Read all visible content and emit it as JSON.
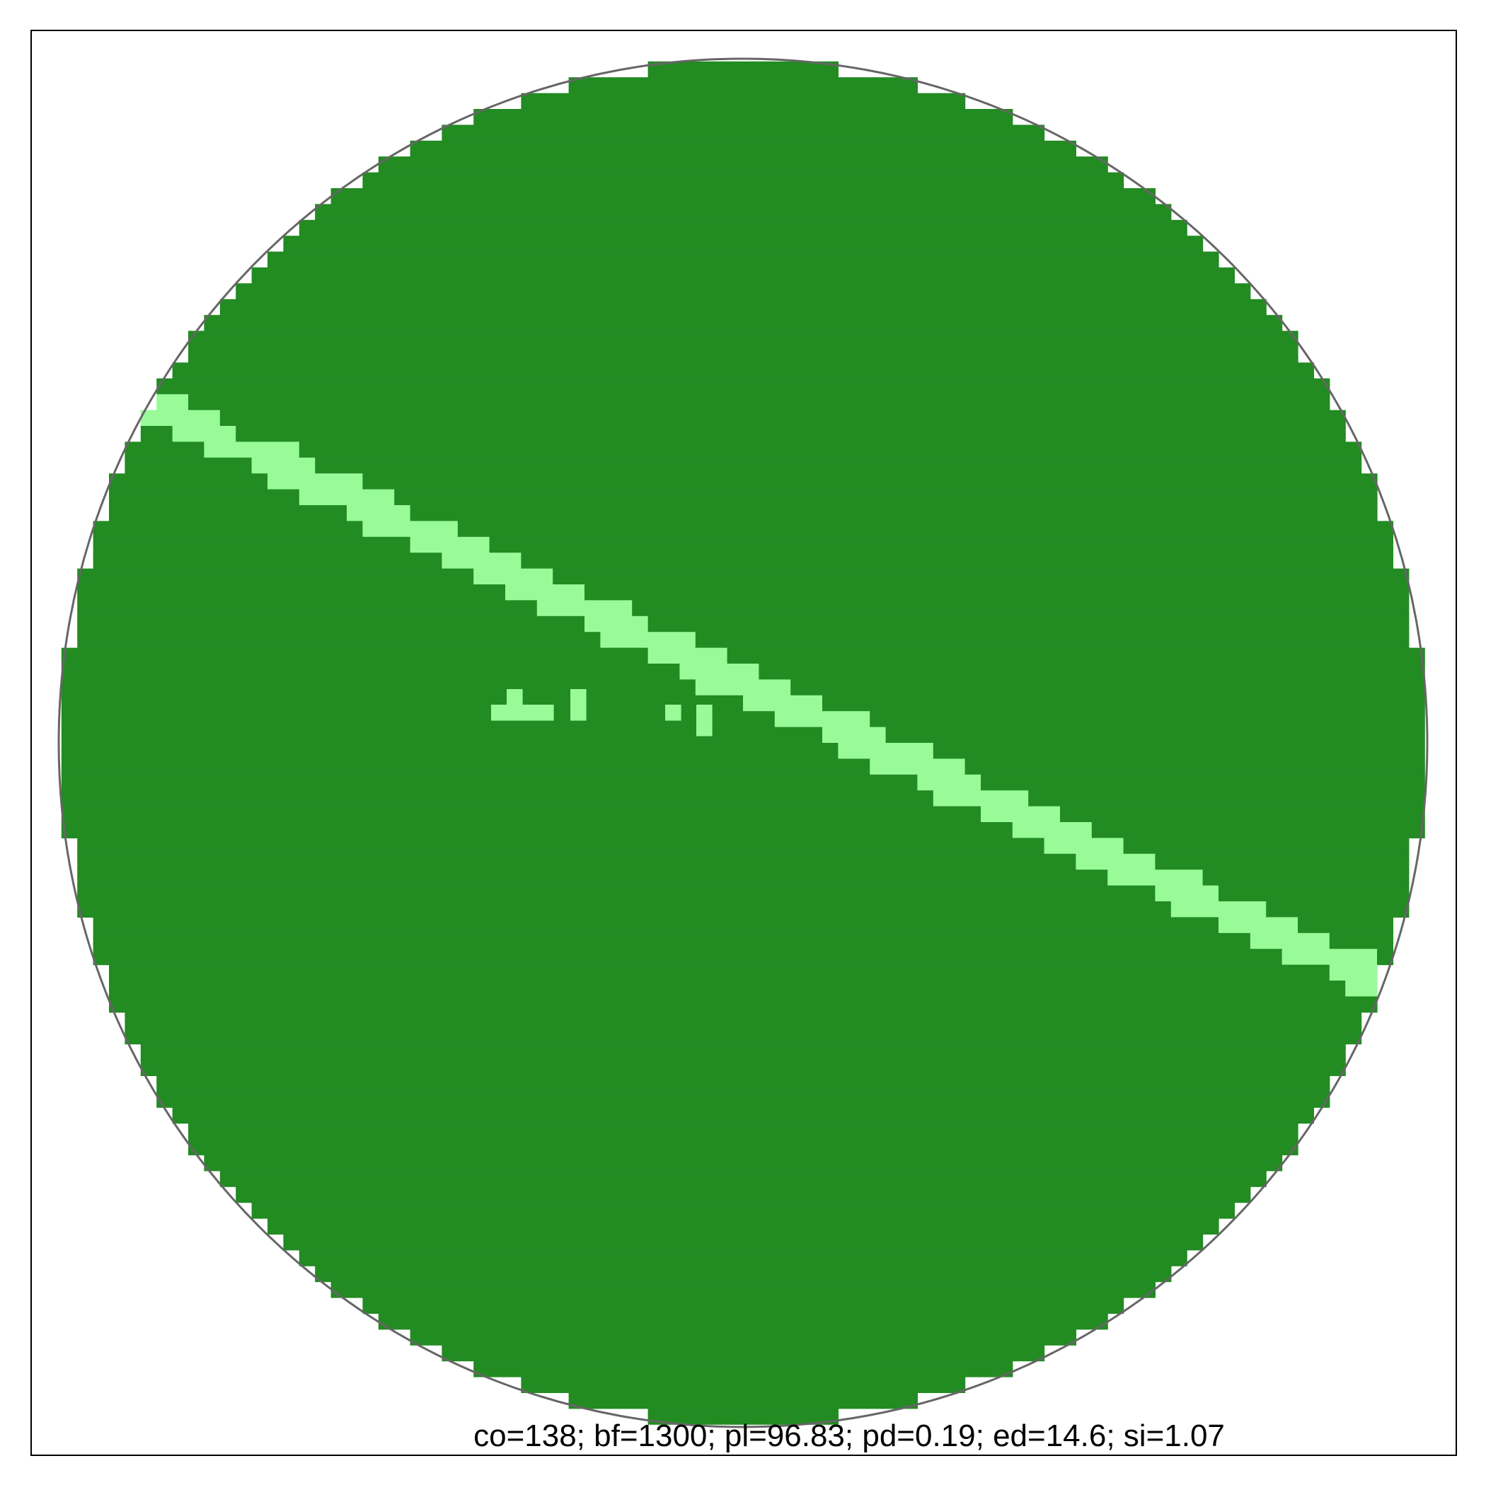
{
  "figure": {
    "stats_text": "co=138; bf=1300; pl=96.83; pd=0.19; ed=14.6; si=1.07"
  },
  "colors": {
    "background": "#ffffff",
    "forest": "#228B22",
    "clearing": "#98FB98",
    "circle_outline": "#666666",
    "frame": "#000000"
  }
}
